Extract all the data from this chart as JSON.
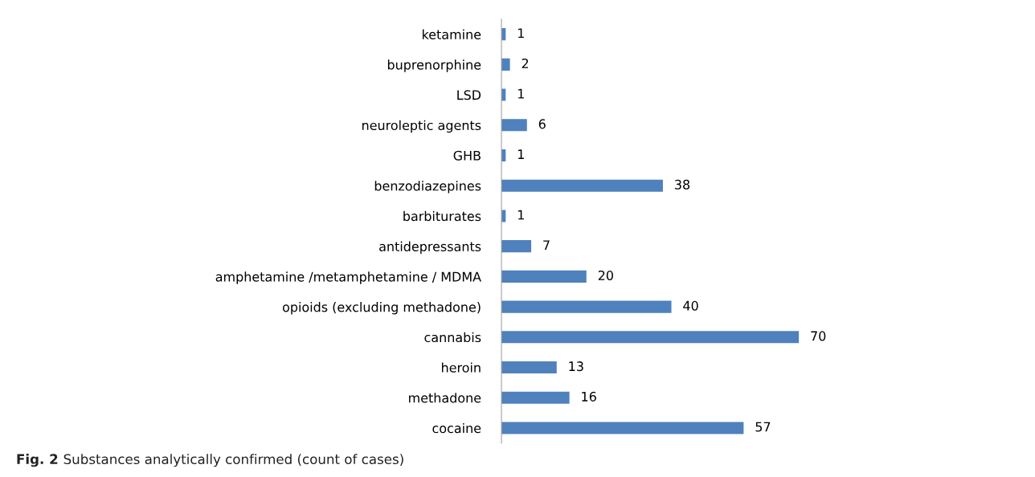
{
  "chart_data": {
    "type": "bar",
    "orientation": "horizontal",
    "categories": [
      "ketamine",
      "buprenorphine",
      "LSD",
      "neuroleptic agents",
      "GHB",
      "benzodiazepines",
      "barbiturates",
      "antidepressants",
      "amphetamine /metamphetamine / MDMA",
      "opioids (excluding methadone)",
      "cannabis",
      "heroin",
      "methadone",
      "cocaine"
    ],
    "values": [
      1,
      2,
      1,
      6,
      1,
      38,
      1,
      7,
      20,
      40,
      70,
      13,
      16,
      57
    ],
    "color": "#4f81bd",
    "data_labels": true,
    "grid": false,
    "legend": false,
    "tick_labels": "y",
    "annotations": [
      "Fig. 2",
      "Substances analytically confirmed (count of cases)"
    ]
  }
}
